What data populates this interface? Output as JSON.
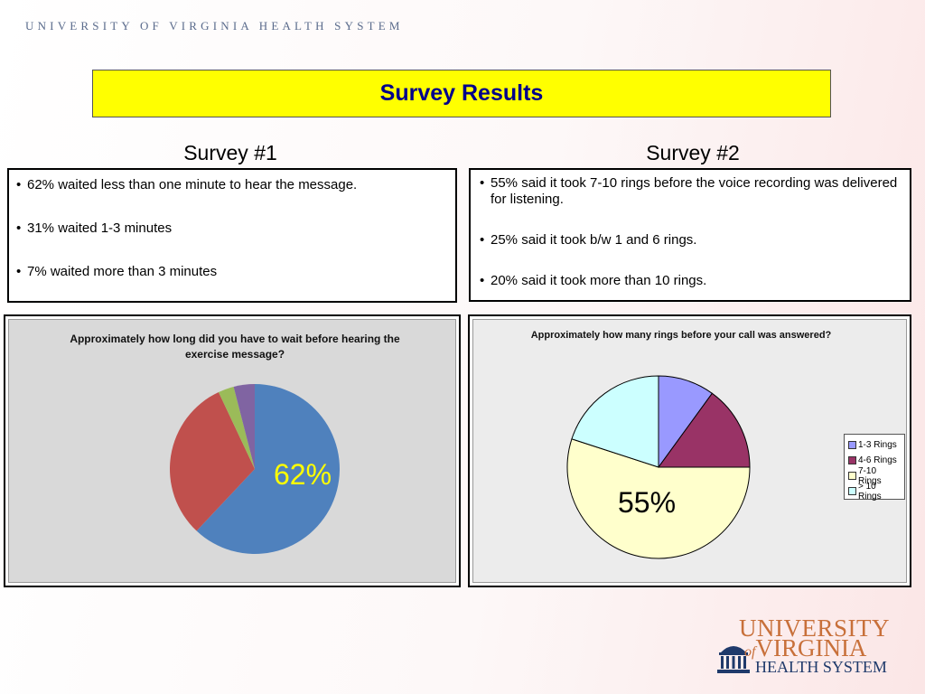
{
  "header": {
    "org_name": "UNIVERSITY OF VIRGINIA HEALTH SYSTEM"
  },
  "title": "Survey Results",
  "survey1": {
    "heading": "Survey #1",
    "bullets": [
      "62% waited less than one minute to hear the message.",
      "31% waited 1-3 minutes",
      "7% waited more than 3 minutes"
    ]
  },
  "survey2": {
    "heading": "Survey #2",
    "bullets": [
      "55% said it took 7-10 rings before the voice recording was delivered for listening.",
      "25% said it took b/w 1 and 6 rings.",
      "20% said it took more than 10 rings."
    ]
  },
  "logo": {
    "line1": "UNIVERSITY",
    "line2_of": "of",
    "line2": "VIRGINIA",
    "line3": "HEALTH SYSTEM"
  },
  "chart_data": [
    {
      "type": "pie",
      "title": "Approximately how long did you have to wait before hearing the exercise message?",
      "label": "62%",
      "label_color": "#ffff00",
      "slices": [
        {
          "value": 62,
          "color": "#4f81bd"
        },
        {
          "value": 31,
          "color": "#c0504d"
        },
        {
          "value": 3,
          "color": "#9bbb59"
        },
        {
          "value": 4,
          "color": "#8064a2"
        }
      ]
    },
    {
      "type": "pie",
      "title": "Approximately how many rings before your call was answered?",
      "label": "55%",
      "label_color": "#000000",
      "legend_placement": "right",
      "slices": [
        {
          "name": "1-3 Rings",
          "value": 10,
          "color": "#9999ff"
        },
        {
          "name": "4-6 Rings",
          "value": 15,
          "color": "#993366"
        },
        {
          "name": "7-10 Rings",
          "value": 55,
          "color": "#ffffcc"
        },
        {
          "name": "> 10 Rings",
          "value": 20,
          "color": "#ccffff"
        }
      ]
    }
  ]
}
